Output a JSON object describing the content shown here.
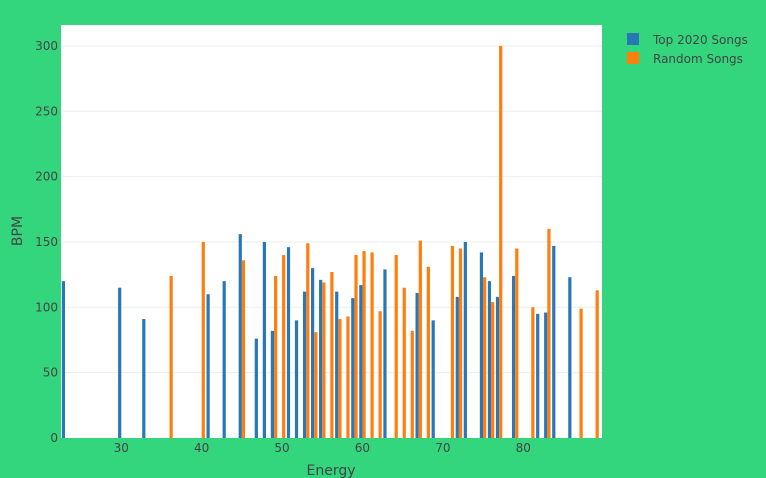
{
  "colors": {
    "background": "#33d67d",
    "plot_area": "#ffffff",
    "gridline": "#eeeeee",
    "top_2020": "#2878b8",
    "random": "#ff7f0e",
    "text": "#444444"
  },
  "chart_data": {
    "type": "bar",
    "barmode": "group",
    "title": "",
    "xlabel": "Energy",
    "ylabel": "BPM",
    "xlim": [
      22.5,
      89.8
    ],
    "ylim": [
      0,
      316
    ],
    "xticks": [
      30,
      40,
      50,
      60,
      70,
      80
    ],
    "yticks": [
      0,
      50,
      100,
      150,
      200,
      250,
      300
    ],
    "grid": true,
    "legend_position": "top-right",
    "series": [
      {
        "name": "Top 2020 Songs",
        "color": "#2878b8",
        "points": [
          {
            "x": 23,
            "y": 120
          },
          {
            "x": 30,
            "y": 115
          },
          {
            "x": 33,
            "y": 91
          },
          {
            "x": 41,
            "y": 110
          },
          {
            "x": 43,
            "y": 120
          },
          {
            "x": 45,
            "y": 156
          },
          {
            "x": 47,
            "y": 76
          },
          {
            "x": 48,
            "y": 150
          },
          {
            "x": 49,
            "y": 82
          },
          {
            "x": 51,
            "y": 146
          },
          {
            "x": 52,
            "y": 90
          },
          {
            "x": 53,
            "y": 112
          },
          {
            "x": 54,
            "y": 130
          },
          {
            "x": 55,
            "y": 121
          },
          {
            "x": 57,
            "y": 112
          },
          {
            "x": 59,
            "y": 107
          },
          {
            "x": 60,
            "y": 117
          },
          {
            "x": 63,
            "y": 129
          },
          {
            "x": 67,
            "y": 111
          },
          {
            "x": 69,
            "y": 90
          },
          {
            "x": 72,
            "y": 108
          },
          {
            "x": 73,
            "y": 150
          },
          {
            "x": 75,
            "y": 142
          },
          {
            "x": 76,
            "y": 120
          },
          {
            "x": 77,
            "y": 108
          },
          {
            "x": 79,
            "y": 124
          },
          {
            "x": 82,
            "y": 95
          },
          {
            "x": 83,
            "y": 96
          },
          {
            "x": 84,
            "y": 147
          },
          {
            "x": 86,
            "y": 123
          }
        ]
      },
      {
        "name": "Random Songs",
        "color": "#ff7f0e",
        "points": [
          {
            "x": 36,
            "y": 124
          },
          {
            "x": 40,
            "y": 150
          },
          {
            "x": 45,
            "y": 136
          },
          {
            "x": 49,
            "y": 124
          },
          {
            "x": 50,
            "y": 140
          },
          {
            "x": 53,
            "y": 149
          },
          {
            "x": 54,
            "y": 81
          },
          {
            "x": 55,
            "y": 119
          },
          {
            "x": 56,
            "y": 127
          },
          {
            "x": 57,
            "y": 91
          },
          {
            "x": 58,
            "y": 93
          },
          {
            "x": 59,
            "y": 140
          },
          {
            "x": 60,
            "y": 143
          },
          {
            "x": 61,
            "y": 142
          },
          {
            "x": 62,
            "y": 97
          },
          {
            "x": 64,
            "y": 140
          },
          {
            "x": 65,
            "y": 115
          },
          {
            "x": 66,
            "y": 82
          },
          {
            "x": 67,
            "y": 151
          },
          {
            "x": 68,
            "y": 131
          },
          {
            "x": 71,
            "y": 147
          },
          {
            "x": 72,
            "y": 145
          },
          {
            "x": 75,
            "y": 123
          },
          {
            "x": 76,
            "y": 104
          },
          {
            "x": 77,
            "y": 300
          },
          {
            "x": 79,
            "y": 145
          },
          {
            "x": 81,
            "y": 100
          },
          {
            "x": 83,
            "y": 160
          },
          {
            "x": 87,
            "y": 99
          },
          {
            "x": 89,
            "y": 113
          }
        ]
      }
    ]
  }
}
